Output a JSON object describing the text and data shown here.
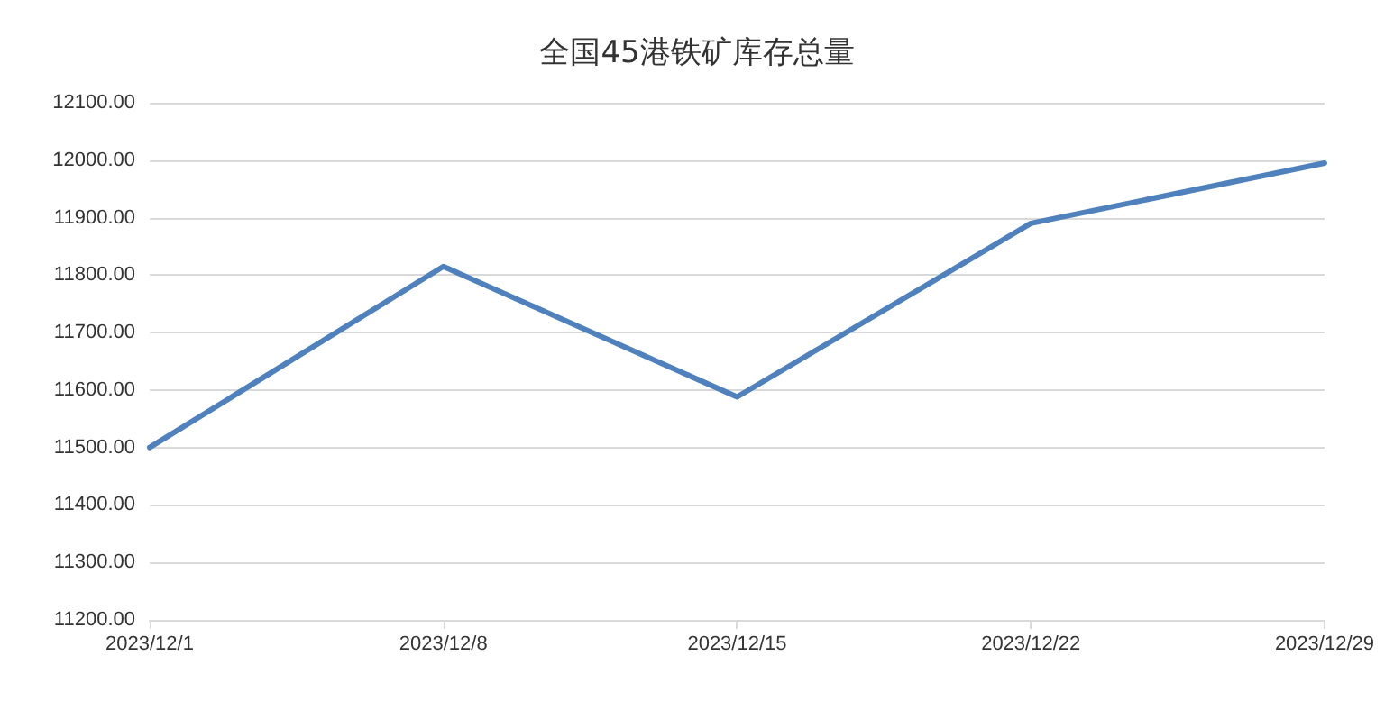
{
  "chart_data": {
    "type": "line",
    "title": "全国45港铁矿库存总量",
    "categories": [
      "2023/12/1",
      "2023/12/8",
      "2023/12/15",
      "2023/12/22",
      "2023/12/29"
    ],
    "series": [
      {
        "color": "#4f81bd",
        "values": [
          11500,
          11815,
          11588,
          11890,
          11995
        ]
      }
    ],
    "ylim": [
      11200,
      12100
    ],
    "yticks": [
      {
        "value": 11200,
        "label": "11200.00"
      },
      {
        "value": 11300,
        "label": "11300.00"
      },
      {
        "value": 11400,
        "label": "11400.00"
      },
      {
        "value": 11500,
        "label": "11500.00"
      },
      {
        "value": 11600,
        "label": "11600.00"
      },
      {
        "value": 11700,
        "label": "11700.00"
      },
      {
        "value": 11800,
        "label": "11800.00"
      },
      {
        "value": 11900,
        "label": "11900.00"
      },
      {
        "value": 12000,
        "label": "12000.00"
      },
      {
        "value": 12100,
        "label": "12100.00"
      }
    ],
    "grid": "y",
    "marker": "none",
    "line_style": "solid"
  }
}
